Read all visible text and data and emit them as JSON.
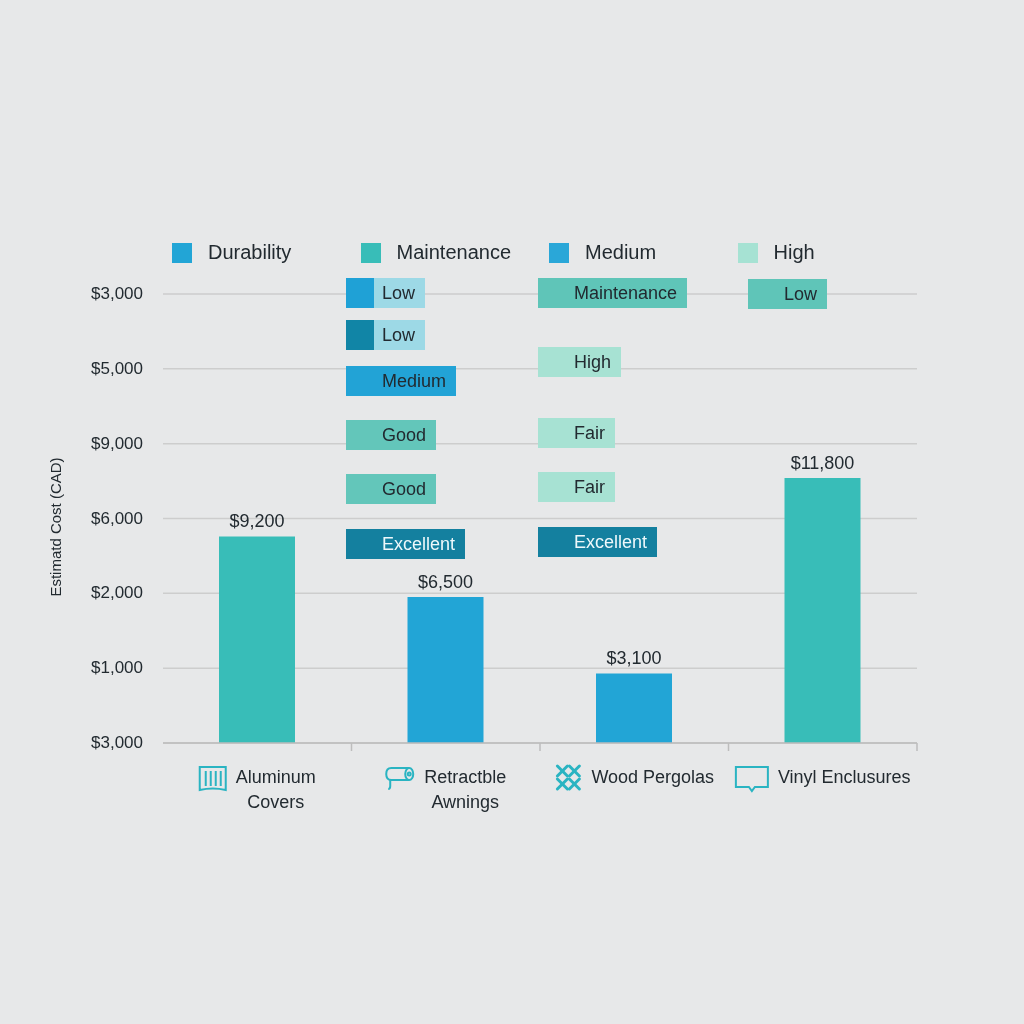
{
  "chart_data": {
    "type": "bar",
    "categories": [
      "Aluminum Covers",
      "Retractble Awnings",
      "Wood Pergolas",
      "Vinyl Enclusures"
    ],
    "series": [
      {
        "name": "Durability",
        "color": "#22a5d6",
        "values": [
          null,
          6500,
          3100,
          null
        ],
        "value_labels": [
          null,
          "$6,500",
          "$3,100",
          null
        ]
      },
      {
        "name": "Maintenance",
        "color": "#38bdb8",
        "values": [
          9200,
          null,
          null,
          11800
        ],
        "value_labels": [
          "$9,200",
          null,
          null,
          "$11,800"
        ]
      },
      {
        "name": "Medium",
        "color": "#2aa7d8",
        "values": [
          null,
          null,
          null,
          null
        ]
      },
      {
        "name": "High",
        "color": "#a6e2d3",
        "values": [
          null,
          null,
          null,
          null
        ]
      }
    ],
    "stacked": true,
    "ylim": [
      0,
      20000
    ],
    "grid": "y",
    "legend": "top",
    "annotations": [
      "Estimatd Cost (CAD)",
      "$3,000",
      "$5,000",
      "$9,000",
      "$6,000",
      "$2,000",
      "$1,000",
      "$3,000",
      "Low",
      "Low",
      "Medium",
      "Good",
      "Good",
      "Excellent",
      "Maintenance",
      "High",
      "Fair",
      "Fair",
      "Excellent",
      "Low"
    ]
  }
}
